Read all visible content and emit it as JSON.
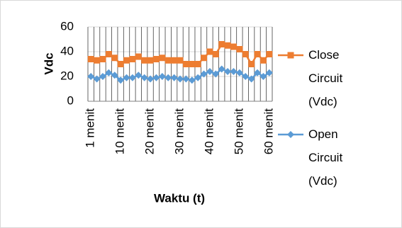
{
  "chart_data": {
    "type": "line",
    "x_label": "Waktu (t)",
    "y_label": "Vdc",
    "categories": [
      "1 menit",
      null,
      null,
      null,
      null,
      "10 menit",
      null,
      null,
      null,
      null,
      "20 menit",
      null,
      null,
      null,
      null,
      "30 menit",
      null,
      null,
      null,
      null,
      "40 menit",
      null,
      null,
      null,
      null,
      "50 menit",
      null,
      null,
      null,
      null,
      "60 menit"
    ],
    "series": [
      {
        "name": "Close Circuit (Vdc)",
        "color": "#ed7d31",
        "marker": "square",
        "values": [
          34,
          33,
          34,
          38,
          35,
          30,
          33,
          34,
          36,
          33,
          33,
          34,
          35,
          33,
          33,
          33,
          30,
          30,
          30,
          35,
          40,
          38,
          46,
          45,
          44,
          42,
          38,
          30,
          38,
          33,
          38
        ]
      },
      {
        "name": "Open Circuit (Vdc)",
        "color": "#5b9bd5",
        "marker": "diamond",
        "values": [
          20,
          18,
          20,
          23,
          21,
          17,
          19,
          19,
          21,
          19,
          18,
          19,
          20,
          19,
          19,
          18,
          18,
          17,
          19,
          22,
          24,
          22,
          26,
          24,
          24,
          23,
          20,
          18,
          23,
          20,
          23
        ]
      }
    ],
    "ylim": [
      0,
      60
    ],
    "yticks": [
      0,
      20,
      40,
      60
    ],
    "grid": true
  }
}
